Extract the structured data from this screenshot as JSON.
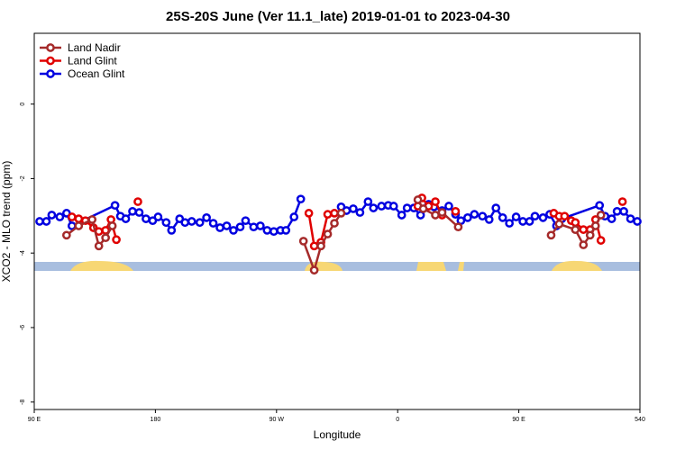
{
  "chart_data": {
    "type": "line",
    "title": "25S-20S June (Ver 11.1_late)   2019-01-01 to 2023-04-30",
    "xlabel": "Longitude",
    "ylabel": "XCO2 - MLO trend (ppm)",
    "xlim": [
      90,
      540
    ],
    "xticks": [
      {
        "value": 90,
        "label": "90 E"
      },
      180,
      {
        "value": 270,
        "label": "90 W"
      },
      {
        "value": 360,
        "label": "0"
      },
      {
        "value": 450,
        "label": "90 E"
      },
      540
    ],
    "ylim": [
      -8.2,
      1.9
    ],
    "yticks": [
      0,
      -2,
      -4,
      -6,
      -8
    ],
    "legend": "top-left",
    "series": [
      {
        "name": "Land Nadir",
        "color": "#a52a2a",
        "x": [
          114,
          123,
          133,
          138,
          143,
          148,
          200,
          290,
          298,
          303,
          308,
          313,
          318,
          340,
          375,
          379,
          388,
          393,
          405,
          440,
          474,
          480,
          492,
          498,
          503,
          507,
          511
        ],
        "values": [
          -3.52,
          -3.27,
          -3.1,
          -3.81,
          -3.59,
          -3.27,
          null,
          -3.68,
          -4.46,
          -3.81,
          -3.49,
          -3.2,
          -2.93,
          null,
          -2.57,
          -2.81,
          -2.98,
          -2.91,
          -3.3,
          null,
          -3.52,
          -3.22,
          -3.37,
          -3.78,
          -3.52,
          -3.27,
          -2.98
        ]
      },
      {
        "name": "Land Glint",
        "color": "#e00000",
        "x": [
          118,
          123,
          128,
          134,
          138,
          143,
          147,
          151,
          160,
          167,
          230,
          294,
          298,
          303,
          308,
          313,
          340,
          375,
          378,
          383,
          388,
          393,
          400,
          403,
          440,
          476,
          480,
          484,
          489,
          492,
          498,
          503,
          507,
          511,
          520,
          527
        ],
        "values": [
          -3.03,
          -3.08,
          -3.13,
          -3.32,
          -3.42,
          -3.39,
          -3.1,
          -3.64,
          null,
          -2.62,
          null,
          -2.93,
          -3.81,
          -3.71,
          -2.96,
          -2.93,
          null,
          -2.74,
          -2.52,
          -2.74,
          -2.62,
          -2.98,
          null,
          -2.88,
          null,
          -2.93,
          -3.01,
          -3.01,
          -3.13,
          -3.18,
          -3.37,
          -3.37,
          -3.1,
          -3.66,
          null,
          -2.62
        ]
      },
      {
        "name": "Ocean Glint",
        "color": "#0000e0",
        "x": [
          94,
          99,
          103,
          109,
          114,
          118,
          150,
          154,
          158,
          163,
          168,
          173,
          178,
          182,
          188,
          192,
          198,
          202,
          207,
          213,
          218,
          223,
          228,
          233,
          238,
          243,
          247,
          253,
          258,
          263,
          268,
          273,
          277,
          283,
          288,
          300,
          318,
          322,
          327,
          332,
          338,
          342,
          348,
          353,
          357,
          363,
          367,
          372,
          377,
          383,
          387,
          393,
          398,
          403,
          407,
          412,
          417,
          423,
          428,
          433,
          438,
          443,
          448,
          453,
          458,
          462,
          468,
          473,
          478,
          482,
          510,
          514,
          519,
          523,
          528,
          533,
          538
        ],
        "values": [
          -3.15,
          -3.15,
          -2.98,
          -3.03,
          -2.93,
          -3.27,
          -2.72,
          -3.01,
          -3.08,
          -2.88,
          -2.91,
          -3.08,
          -3.13,
          -3.03,
          -3.18,
          -3.39,
          -3.08,
          -3.18,
          -3.15,
          -3.18,
          -3.05,
          -3.2,
          -3.32,
          -3.27,
          -3.39,
          -3.3,
          -3.13,
          -3.3,
          -3.27,
          -3.39,
          -3.42,
          -3.39,
          -3.39,
          -3.03,
          -2.55,
          null,
          -2.76,
          -2.86,
          -2.81,
          -2.91,
          -2.62,
          -2.79,
          -2.74,
          -2.72,
          -2.74,
          -2.98,
          -2.79,
          -2.79,
          -2.98,
          -2.69,
          -2.76,
          -2.86,
          -2.74,
          -2.96,
          -3.13,
          -3.05,
          -2.96,
          -3.01,
          -3.1,
          -2.79,
          -3.05,
          -3.2,
          -3.03,
          -3.15,
          -3.15,
          -3.01,
          -3.05,
          -2.96,
          -3.27,
          -3.08,
          -2.72,
          -3.01,
          -3.08,
          -2.88,
          -2.88,
          -3.08,
          -3.15
        ]
      }
    ]
  }
}
